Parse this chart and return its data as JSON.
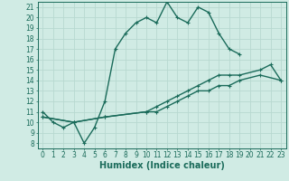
{
  "bg_color": "#d0ebe4",
  "grid_color": "#b8d8d0",
  "line_color": "#1a6b5a",
  "xlabel": "Humidex (Indice chaleur)",
  "xlabel_fontsize": 7,
  "tick_fontsize": 5.5,
  "xlim": [
    -0.5,
    23.5
  ],
  "ylim": [
    7.5,
    21.5
  ],
  "xticks": [
    0,
    1,
    2,
    3,
    4,
    5,
    6,
    7,
    8,
    9,
    10,
    11,
    12,
    13,
    14,
    15,
    16,
    17,
    18,
    19,
    20,
    21,
    22,
    23
  ],
  "yticks": [
    8,
    9,
    10,
    11,
    12,
    13,
    14,
    15,
    16,
    17,
    18,
    19,
    20,
    21
  ],
  "line1_x": [
    0,
    1,
    2,
    3,
    4,
    5,
    6,
    7,
    8,
    9,
    10,
    11,
    12,
    13,
    14,
    15,
    16,
    17,
    18,
    19
  ],
  "line1_y": [
    11,
    10,
    9.5,
    10,
    8,
    9.5,
    12,
    17,
    18.5,
    19.5,
    20,
    19.5,
    21.5,
    20,
    19.5,
    21,
    20.5,
    18.5,
    17,
    16.5
  ],
  "line2_x": [
    0,
    3,
    6,
    10,
    11,
    12,
    13,
    14,
    15,
    16,
    17,
    18,
    19,
    21,
    22,
    23
  ],
  "line2_y": [
    10.5,
    10,
    10.5,
    11,
    11.5,
    12,
    12.5,
    13,
    13.5,
    14,
    14.5,
    14.5,
    14.5,
    15,
    15.5,
    14
  ],
  "line3_x": [
    0,
    3,
    6,
    10,
    11,
    12,
    13,
    14,
    15,
    16,
    17,
    18,
    19,
    21,
    23
  ],
  "line3_y": [
    10.5,
    10,
    10.5,
    11,
    11,
    11.5,
    12,
    12.5,
    13,
    13,
    13.5,
    13.5,
    14,
    14.5,
    14
  ]
}
